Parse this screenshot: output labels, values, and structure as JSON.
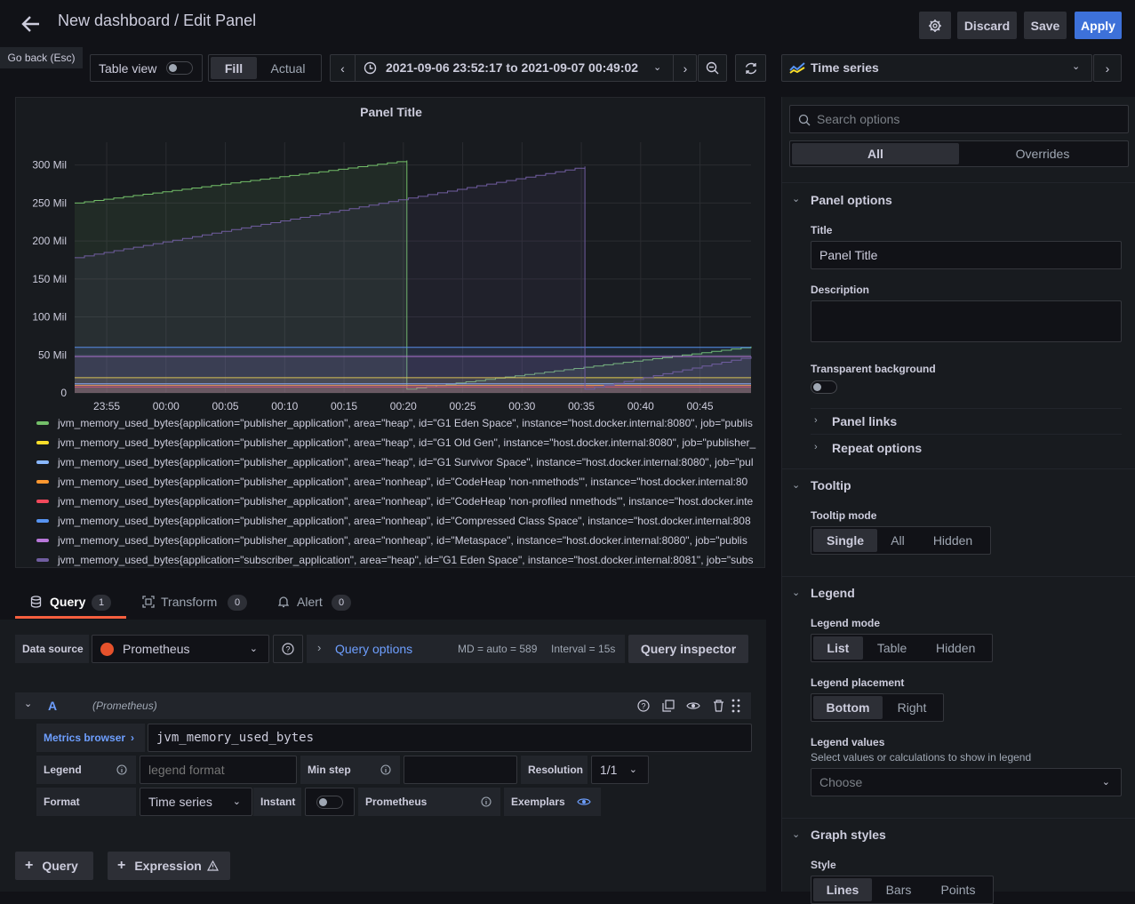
{
  "header": {
    "title": "New dashboard / Edit Panel",
    "tooltip": "Go back (Esc)",
    "discard": "Discard",
    "save": "Save",
    "apply": "Apply"
  },
  "toolbar": {
    "table_view": "Table view",
    "fill": "Fill",
    "actual": "Actual",
    "time_range": "2021-09-06 23:52:17 to 2021-09-07 00:49:02",
    "visualization": "Time series"
  },
  "chart_data": {
    "type": "line",
    "title": "Panel Title",
    "yticks": [
      "300 Mil",
      "250 Mil",
      "200 Mil",
      "150 Mil",
      "100 Mil",
      "50 Mil",
      "0"
    ],
    "xticks": [
      "23:55",
      "00:00",
      "00:05",
      "00:10",
      "00:15",
      "00:20",
      "00:25",
      "00:30",
      "00:35",
      "00:40",
      "00:45"
    ],
    "ylim": [
      0,
      300000000
    ],
    "series": [
      {
        "name": "jvm_memory_used_bytes{application=\"publisher_application\", area=\"heap\", id=\"G1 Eden Space\", instance=\"host.docker.internal:8080\", job=\"publis",
        "color": "#73bf69",
        "points": [
          [
            0,
            250
          ],
          [
            28,
            306
          ],
          [
            28,
            5
          ],
          [
            57,
            61
          ]
        ]
      },
      {
        "name": "jvm_memory_used_bytes{application=\"publisher_application\", area=\"heap\", id=\"G1 Old Gen\", instance=\"host.docker.internal:8080\", job=\"publisher_",
        "color": "#fade2a",
        "points": [
          [
            0,
            20
          ],
          [
            57,
            20
          ]
        ]
      },
      {
        "name": "jvm_memory_used_bytes{application=\"publisher_application\", area=\"heap\", id=\"G1 Survivor Space\", instance=\"host.docker.internal:8080\", job=\"pul",
        "color": "#8ab8ff",
        "points": [
          [
            0,
            12
          ],
          [
            57,
            12
          ]
        ]
      },
      {
        "name": "jvm_memory_used_bytes{application=\"publisher_application\", area=\"nonheap\", id=\"CodeHeap 'non-nmethods'\", instance=\"host.docker.internal:80",
        "color": "#ff9830",
        "points": [
          [
            0,
            10
          ],
          [
            57,
            10
          ]
        ]
      },
      {
        "name": "jvm_memory_used_bytes{application=\"publisher_application\", area=\"nonheap\", id=\"CodeHeap 'non-profiled nmethods'\", instance=\"host.docker.inte",
        "color": "#f2495c",
        "points": [
          [
            0,
            8
          ],
          [
            57,
            8
          ]
        ]
      },
      {
        "name": "jvm_memory_used_bytes{application=\"publisher_application\", area=\"nonheap\", id=\"Compressed Class Space\", instance=\"host.docker.internal:808",
        "color": "#5794f2",
        "points": [
          [
            0,
            60
          ],
          [
            57,
            60
          ]
        ]
      },
      {
        "name": "jvm_memory_used_bytes{application=\"publisher_application\", area=\"nonheap\", id=\"Metaspace\", instance=\"host.docker.internal:8080\", job=\"publis",
        "color": "#b877d9",
        "points": [
          [
            0,
            48
          ],
          [
            57,
            48
          ]
        ]
      },
      {
        "name": "jvm_memory_used_bytes{application=\"subscriber_application\", area=\"heap\", id=\"G1 Eden Space\", instance=\"host.docker.internal:8081\", job=\"subs",
        "color": "#705da0",
        "points": [
          [
            0,
            178
          ],
          [
            43,
            298
          ],
          [
            43,
            5
          ],
          [
            57,
            48
          ]
        ]
      }
    ]
  },
  "query_tabs": [
    {
      "label": "Query",
      "count": "1"
    },
    {
      "label": "Transform",
      "count": "0"
    },
    {
      "label": "Alert",
      "count": "0"
    }
  ],
  "query": {
    "datasource_label": "Data source",
    "datasource": "Prometheus",
    "query_options": "Query options",
    "md": "MD = auto = 589",
    "interval": "Interval = 15s",
    "inspector": "Query inspector",
    "ref": "A",
    "ref_source": "(Prometheus)",
    "metrics_browser": "Metrics browser",
    "expr": "jvm_memory_used_bytes",
    "legend_label": "Legend",
    "legend_placeholder": "legend format",
    "min_step_label": "Min step",
    "resolution_label": "Resolution",
    "resolution": "1/1",
    "format_label": "Format",
    "format": "Time series",
    "instant_label": "Instant",
    "prom_label": "Prometheus",
    "exemplars_label": "Exemplars",
    "add_query": "Query",
    "add_expression": "Expression"
  },
  "options": {
    "search_placeholder": "Search options",
    "tab_all": "All",
    "tab_overrides": "Overrides",
    "panel_options": "Panel options",
    "title_label": "Title",
    "title_value": "Panel Title",
    "desc_label": "Description",
    "transparent_label": "Transparent background",
    "panel_links": "Panel links",
    "repeat_options": "Repeat options",
    "tooltip": "Tooltip",
    "tooltip_mode": "Tooltip mode",
    "tt_single": "Single",
    "tt_all": "All",
    "tt_hidden": "Hidden",
    "legend": "Legend",
    "legend_mode": "Legend mode",
    "lm_list": "List",
    "lm_table": "Table",
    "lm_hidden": "Hidden",
    "legend_placement": "Legend placement",
    "lp_bottom": "Bottom",
    "lp_right": "Right",
    "legend_values": "Legend values",
    "legend_values_desc": "Select values or calculations to show in legend",
    "choose": "Choose",
    "graph_styles": "Graph styles",
    "style": "Style",
    "st_lines": "Lines",
    "st_bars": "Bars",
    "st_points": "Points"
  }
}
